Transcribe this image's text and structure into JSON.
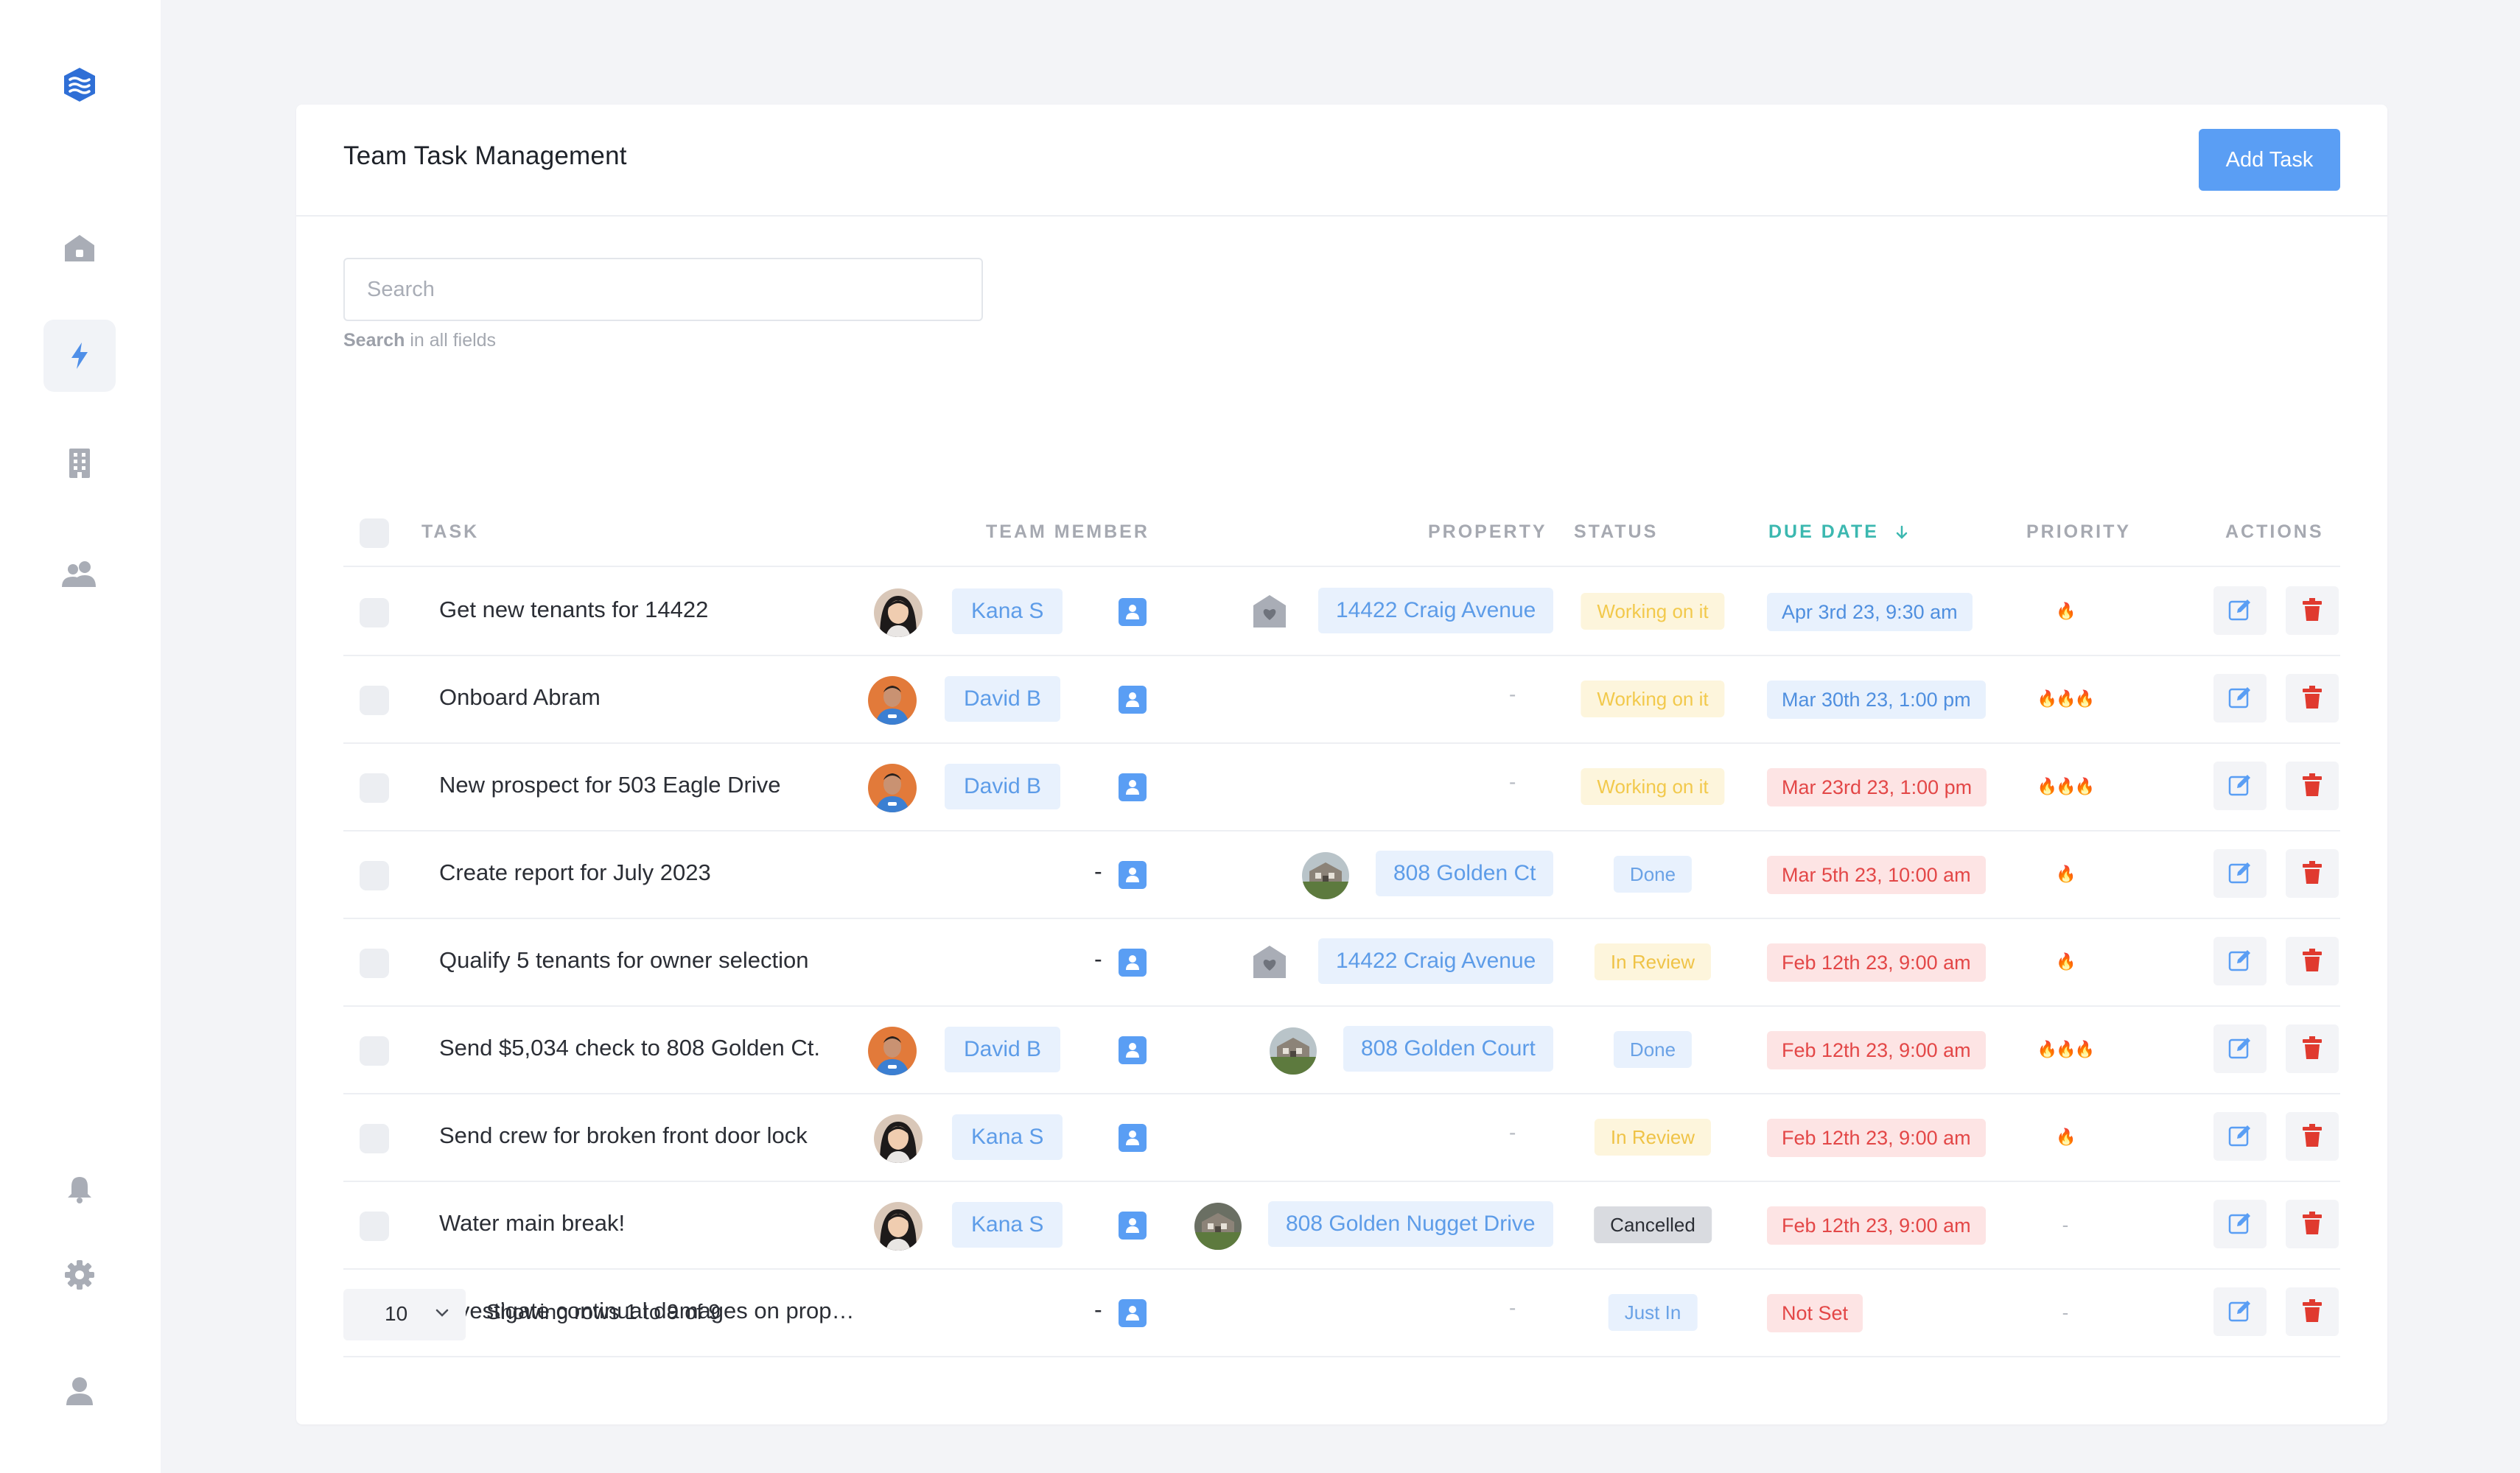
{
  "sidebar": {
    "items": [
      {
        "icon": "logo-icon"
      },
      {
        "icon": "home-icon"
      },
      {
        "icon": "lightning-icon",
        "active": true
      },
      {
        "icon": "building-icon"
      },
      {
        "icon": "people-icon"
      },
      {
        "icon": "bell-icon"
      },
      {
        "icon": "gear-icon"
      },
      {
        "icon": "user-icon"
      }
    ]
  },
  "header": {
    "title": "Team Task Management",
    "add_button": "Add Task"
  },
  "search": {
    "placeholder": "Search",
    "hint_bold": "Search",
    "hint_rest": " in all fields"
  },
  "table": {
    "columns": {
      "task": "TASK",
      "team_member": "TEAM MEMBER",
      "property": "PROPERTY",
      "status": "STATUS",
      "due_date": "DUE DATE",
      "priority": "PRIORITY",
      "actions": "ACTIONS"
    },
    "sort": {
      "column": "due_date",
      "direction": "descending"
    },
    "rows": [
      {
        "task": "Get new tenants for 14422",
        "member": "Kana S",
        "property": "14422 Craig Avenue",
        "property_thumb": "house-icon",
        "status": "Working on it",
        "due": "Apr 3rd 23, 9:30 am",
        "due_style": "blue",
        "priority": "🔥"
      },
      {
        "task": "Onboard Abram",
        "member": "David B",
        "property": "-",
        "status": "Working on it",
        "due": "Mar 30th 23, 1:00 pm",
        "due_style": "blue",
        "priority": "🔥🔥🔥"
      },
      {
        "task": "New prospect for 503 Eagle Drive",
        "member": "David B",
        "property": "-",
        "status": "Working on it",
        "due": "Mar 23rd 23, 1:00 pm",
        "due_style": "red",
        "priority": "🔥🔥🔥"
      },
      {
        "task": "Create report for July 2023",
        "member": "-",
        "property": "808 Golden Ct",
        "property_thumb": "photo",
        "status": "Done",
        "due": "Mar 5th 23, 10:00 am",
        "due_style": "red",
        "priority": "🔥"
      },
      {
        "task": "Qualify 5 tenants for owner selection",
        "member": "-",
        "property": "14422 Craig Avenue",
        "property_thumb": "house-icon",
        "status": "In Review",
        "due": "Feb 12th 23, 9:00 am",
        "due_style": "red",
        "priority": "🔥"
      },
      {
        "task": "Send $5,034 check to 808 Golden Ct.",
        "member": "David B",
        "property": "808 Golden Court",
        "property_thumb": "photo",
        "status": "Done",
        "due": "Feb 12th 23, 9:00 am",
        "due_style": "red",
        "priority": "🔥🔥🔥"
      },
      {
        "task": "Send crew for broken front door lock",
        "member": "Kana S",
        "property": "-",
        "status": "In Review",
        "due": "Feb 12th 23, 9:00 am",
        "due_style": "red",
        "priority": "🔥"
      },
      {
        "task": "Water main break!",
        "member": "Kana S",
        "property": "808 Golden Nugget Drive",
        "property_thumb": "photo",
        "status": "Cancelled",
        "due": "Feb 12th 23, 9:00 am",
        "due_style": "red",
        "priority": "-"
      },
      {
        "task": "Investigate continual damages on proper...",
        "member": "-",
        "property": "-",
        "status": "Just In",
        "due": "Not Set",
        "due_style": "red",
        "priority": "-"
      }
    ]
  },
  "footer": {
    "page_size": "10",
    "showing": "Showing rows 1 to 9 of 9"
  },
  "colors": {
    "accent": "#5a9ef4",
    "sort_accent": "#3cb8b0",
    "danger": "#e03a2f"
  }
}
